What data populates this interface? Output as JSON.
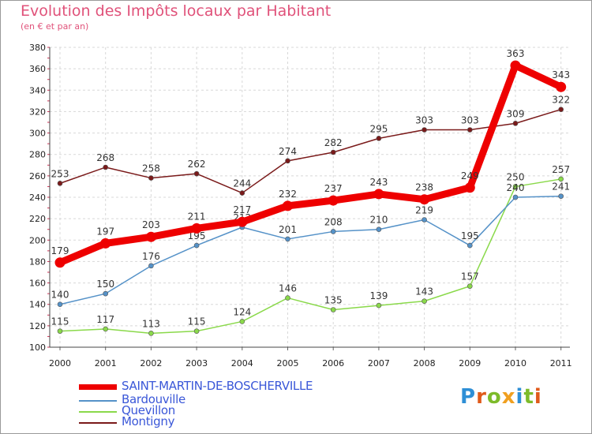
{
  "title": "Evolution des Impôts locaux par Habitant",
  "subtitle": "(en € et par an)",
  "logo": {
    "text": "Proxiti",
    "letter_colors": [
      "#2e8fd6",
      "#e05a1a",
      "#7dbb2a",
      "#f0a020",
      "#2e8fd6",
      "#7dbb2a",
      "#e05a1a"
    ]
  },
  "chart_data": {
    "type": "line",
    "x": [
      "2000",
      "2001",
      "2002",
      "2003",
      "2004",
      "2005",
      "2006",
      "2007",
      "2008",
      "2009",
      "2010",
      "2011"
    ],
    "ylim": [
      100,
      380
    ],
    "yticks": [
      100,
      120,
      140,
      160,
      180,
      200,
      220,
      240,
      260,
      280,
      300,
      320,
      340,
      360,
      380
    ],
    "grid": true,
    "legend_position": "bottom-left",
    "series": [
      {
        "name": "Montigny",
        "color": "#7a1a1a",
        "values": [
          253,
          268,
          258,
          262,
          244,
          274,
          282,
          295,
          303,
          303,
          309,
          322
        ]
      },
      {
        "name": "Quevillon",
        "color": "#8ad94a",
        "values": [
          115,
          117,
          113,
          115,
          124,
          146,
          135,
          139,
          143,
          157,
          250,
          257
        ]
      },
      {
        "name": "Bardouville",
        "color": "#5592c8",
        "values": [
          140,
          150,
          176,
          195,
          212,
          201,
          208,
          210,
          219,
          195,
          240,
          241
        ]
      },
      {
        "name": "SAINT-MARTIN-DE-BOSCHERVILLE",
        "color": "#ee0000",
        "values": [
          179,
          197,
          203,
          211,
          217,
          232,
          237,
          243,
          238,
          249,
          363,
          343
        ]
      }
    ]
  },
  "legend": [
    {
      "name": "SAINT-MARTIN-DE-BOSCHERVILLE",
      "color": "#ee0000"
    },
    {
      "name": "Bardouville",
      "color": "#5592c8"
    },
    {
      "name": "Quevillon",
      "color": "#8ad94a"
    },
    {
      "name": "Montigny",
      "color": "#7a1a1a"
    }
  ]
}
